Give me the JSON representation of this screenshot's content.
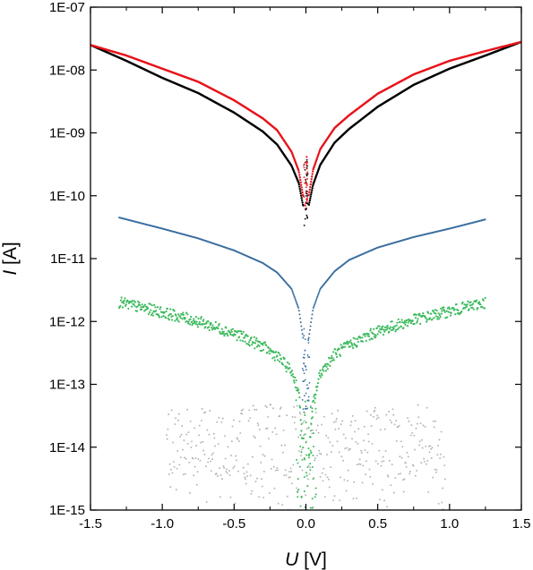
{
  "chart_data": {
    "type": "scatter",
    "title": "",
    "xlabel": {
      "symbol": "U",
      "unit": " [V]"
    },
    "ylabel": {
      "symbol": "I",
      "unit": " [A]"
    },
    "xlim": [
      -1.5,
      1.5
    ],
    "ylim": [
      1e-15,
      1e-07
    ],
    "yscale": "log",
    "grid": false,
    "legend": "none",
    "x_ticks": [
      -1.5,
      -1.0,
      -0.5,
      0.0,
      0.5,
      1.0,
      1.5
    ],
    "x_tick_labels": [
      "-1.5",
      "-1.0",
      "-0.5",
      "0.0",
      "0.5",
      "1.0",
      "1.5"
    ],
    "y_ticks": [
      1e-15,
      1e-14,
      1e-13,
      1e-12,
      1e-11,
      1e-10,
      1e-09,
      1e-08,
      1e-07
    ],
    "y_tick_labels": [
      "1E-15",
      "1E-14",
      "1E-13",
      "1E-12",
      "1E-11",
      "1E-10",
      "1E-09",
      "1E-08",
      "1E-07"
    ],
    "series": [
      {
        "color": "#e8141b",
        "x": [
          -1.5,
          -1.25,
          -1.0,
          -0.75,
          -0.5,
          -0.3,
          -0.2,
          -0.1,
          -0.05,
          -0.02,
          0.02,
          0.05,
          0.1,
          0.2,
          0.3,
          0.5,
          0.75,
          1.0,
          1.25,
          1.5
        ],
        "y": [
          2.5e-08,
          1.7e-08,
          1.05e-08,
          6.5e-09,
          3.3e-09,
          1.7e-09,
          1.1e-09,
          5e-10,
          2.5e-10,
          1e-10,
          1e-10,
          2.6e-10,
          5.5e-10,
          1.2e-09,
          1.9e-09,
          4.2e-09,
          8.5e-09,
          1.4e-08,
          2e-08,
          2.8e-08
        ]
      },
      {
        "color": "#000000",
        "x": [
          -1.5,
          -1.25,
          -1.0,
          -0.75,
          -0.5,
          -0.3,
          -0.2,
          -0.1,
          -0.05,
          -0.02,
          0.02,
          0.05,
          0.1,
          0.2,
          0.3,
          0.5,
          0.75,
          1.0,
          1.25,
          1.5
        ],
        "y": [
          2.5e-08,
          1.4e-08,
          7.5e-09,
          4.3e-09,
          2.1e-09,
          1.05e-09,
          6.5e-10,
          3e-10,
          1.6e-10,
          7e-11,
          7e-11,
          1.5e-10,
          3.1e-10,
          7e-10,
          1.15e-09,
          2.6e-09,
          5.8e-09,
          1.05e-08,
          1.7e-08,
          2.8e-08
        ]
      },
      {
        "color": "#3b6fa0",
        "x": [
          -1.3,
          -1.0,
          -0.75,
          -0.5,
          -0.3,
          -0.2,
          -0.1,
          -0.05,
          -0.02,
          0.02,
          0.05,
          0.1,
          0.2,
          0.3,
          0.5,
          0.75,
          1.0,
          1.25
        ],
        "y": [
          4.5e-11,
          3e-11,
          2.1e-11,
          1.35e-11,
          8.5e-12,
          6e-12,
          3.3e-12,
          1.6e-12,
          5.5e-13,
          5.5e-13,
          1.6e-12,
          3.3e-12,
          6.3e-12,
          9.5e-12,
          1.5e-11,
          2.2e-11,
          3e-11,
          4.2e-11
        ]
      },
      {
        "color": "#3dba5e",
        "x": [
          -1.3,
          -1.0,
          -0.75,
          -0.5,
          -0.3,
          -0.2,
          -0.1,
          -0.05,
          0.0,
          0.05,
          0.1,
          0.2,
          0.3,
          0.5,
          0.75,
          1.0,
          1.25
        ],
        "y": [
          2e-12,
          1.4e-12,
          1e-12,
          6.5e-13,
          4e-13,
          2.8e-13,
          1.6e-13,
          8e-14,
          2e-15,
          5e-14,
          1.5e-13,
          3e-13,
          4.2e-13,
          7e-13,
          1.05e-12,
          1.45e-12,
          2e-12
        ]
      },
      {
        "color": "#b4b4b4",
        "x_range": [
          -0.97,
          0.97
        ],
        "y_range": [
          1e-15,
          5.5e-14
        ]
      }
    ]
  }
}
